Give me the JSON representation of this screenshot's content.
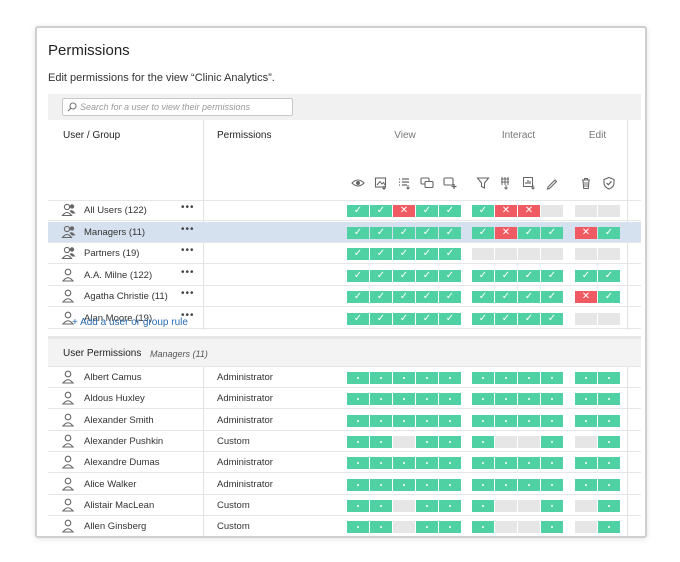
{
  "title": "Permissions",
  "subtitle": "Edit permissions for the view “Clinic Analytics”.",
  "search": {
    "placeholder": "Search for a user to view their permissions"
  },
  "columns": {
    "user_group": "User / Group",
    "permissions": "Permissions",
    "view": "View",
    "interact": "Interact",
    "edit": "Edit"
  },
  "view_icons": [
    "eye-icon",
    "image-download-icon",
    "filter-list-download-icon",
    "comments-icon",
    "comment-add-icon"
  ],
  "interact_icons": [
    "filter-icon",
    "grid-download-icon",
    "chart-download-icon",
    "pencil-icon"
  ],
  "edit_icons": [
    "trash-icon",
    "shield-check-icon"
  ],
  "colors": {
    "green": "#4fd1a4",
    "red": "#ef5a63",
    "empty": "#e6e6e6",
    "link": "#2b6cb0",
    "selected_row": "#d5e1ee"
  },
  "rules": [
    {
      "name": "All Users (122)",
      "type": "group",
      "selected": false,
      "view": [
        "g",
        "g",
        "r",
        "g",
        "g"
      ],
      "interact": [
        "g",
        "r",
        "r",
        "e"
      ],
      "edit": [
        "e",
        "e"
      ]
    },
    {
      "name": "Managers (11)",
      "type": "group",
      "selected": true,
      "view": [
        "g",
        "g",
        "g",
        "g",
        "g"
      ],
      "interact": [
        "g",
        "r",
        "g",
        "g"
      ],
      "edit": [
        "r",
        "g"
      ]
    },
    {
      "name": "Partners (19)",
      "type": "group",
      "selected": false,
      "view": [
        "g",
        "g",
        "g",
        "g",
        "g"
      ],
      "interact": [
        "e",
        "e",
        "e",
        "e"
      ],
      "edit": [
        "e",
        "e"
      ]
    },
    {
      "name": "A.A. Milne (122)",
      "type": "user",
      "selected": false,
      "view": [
        "g",
        "g",
        "g",
        "g",
        "g"
      ],
      "interact": [
        "g",
        "g",
        "g",
        "g"
      ],
      "edit": [
        "g",
        "g"
      ]
    },
    {
      "name": "Agatha Christie (11)",
      "type": "user",
      "selected": false,
      "view": [
        "g",
        "g",
        "g",
        "g",
        "g"
      ],
      "interact": [
        "g",
        "g",
        "g",
        "g"
      ],
      "edit": [
        "r",
        "g"
      ]
    },
    {
      "name": "Alan Moore (19)",
      "type": "user",
      "selected": false,
      "view": [
        "g",
        "g",
        "g",
        "g",
        "g"
      ],
      "interact": [
        "g",
        "g",
        "g",
        "g"
      ],
      "edit": [
        "e",
        "e"
      ]
    }
  ],
  "more_label": "•••",
  "add_rule_label": "+ Add a user or group rule",
  "user_permissions": {
    "label": "User Permissions",
    "group": "Managers (11)",
    "users": [
      {
        "name": "Albert Camus",
        "role": "Administrator",
        "view": [
          "g",
          "g",
          "g",
          "g",
          "g"
        ],
        "interact": [
          "g",
          "g",
          "g",
          "g"
        ],
        "edit": [
          "g",
          "g"
        ]
      },
      {
        "name": "Aldous Huxley",
        "role": "Administrator",
        "view": [
          "g",
          "g",
          "g",
          "g",
          "g"
        ],
        "interact": [
          "g",
          "g",
          "g",
          "g"
        ],
        "edit": [
          "g",
          "g"
        ]
      },
      {
        "name": "Alexander Smith",
        "role": "Administrator",
        "view": [
          "g",
          "g",
          "g",
          "g",
          "g"
        ],
        "interact": [
          "g",
          "g",
          "g",
          "g"
        ],
        "edit": [
          "g",
          "g"
        ]
      },
      {
        "name": "Alexander Pushkin",
        "role": "Custom",
        "view": [
          "g",
          "g",
          "e",
          "g",
          "g"
        ],
        "interact": [
          "g",
          "e",
          "e",
          "g"
        ],
        "edit": [
          "e",
          "g"
        ]
      },
      {
        "name": "Alexandre Dumas",
        "role": "Administrator",
        "view": [
          "g",
          "g",
          "g",
          "g",
          "g"
        ],
        "interact": [
          "g",
          "g",
          "g",
          "g"
        ],
        "edit": [
          "g",
          "g"
        ]
      },
      {
        "name": "Alice Walker",
        "role": "Administrator",
        "view": [
          "g",
          "g",
          "g",
          "g",
          "g"
        ],
        "interact": [
          "g",
          "g",
          "g",
          "g"
        ],
        "edit": [
          "g",
          "g"
        ]
      },
      {
        "name": "Alistair MacLean",
        "role": "Custom",
        "view": [
          "g",
          "g",
          "e",
          "g",
          "g"
        ],
        "interact": [
          "g",
          "e",
          "e",
          "g"
        ],
        "edit": [
          "e",
          "g"
        ]
      },
      {
        "name": "Allen Ginsberg",
        "role": "Custom",
        "view": [
          "g",
          "g",
          "e",
          "g",
          "g"
        ],
        "interact": [
          "g",
          "e",
          "e",
          "g"
        ],
        "edit": [
          "e",
          "g"
        ]
      }
    ]
  }
}
